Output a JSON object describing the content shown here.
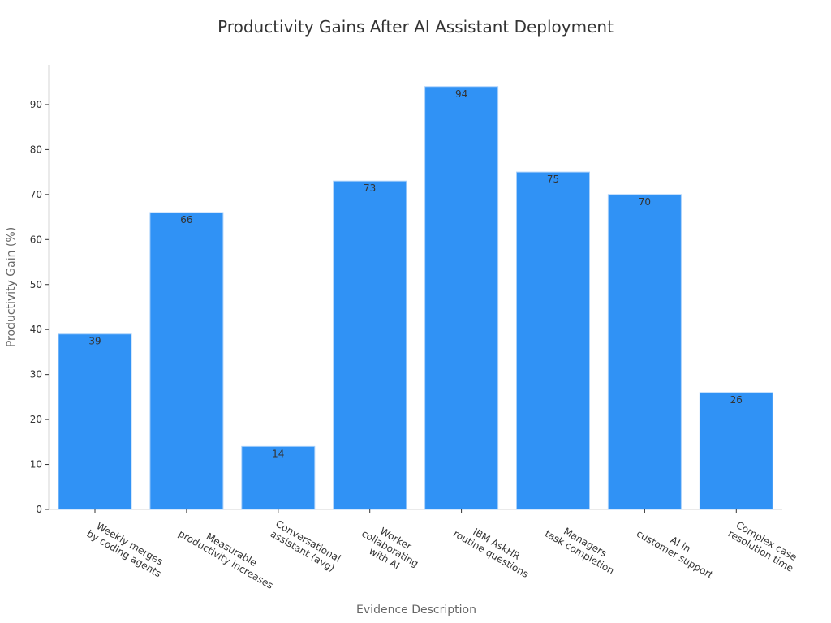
{
  "chart_data": {
    "type": "bar",
    "title": "Productivity Gains After AI Assistant Deployment",
    "xlabel": "Evidence Description",
    "ylabel": "Productivity Gain (%)",
    "categories": [
      [
        "Weekly merges",
        "by coding agents"
      ],
      [
        "Measurable",
        "productivity increases"
      ],
      [
        "Conversational",
        "assistant (avg)"
      ],
      [
        "Worker",
        "collaborating",
        "with AI"
      ],
      [
        "IBM AskHR",
        "routine questions"
      ],
      [
        "Managers",
        "task completion"
      ],
      [
        "AI in",
        "customer support"
      ],
      [
        "Complex case",
        "resolution time"
      ]
    ],
    "values": [
      39,
      66,
      14,
      73,
      94,
      75,
      70,
      26
    ],
    "yticks": [
      0,
      10,
      20,
      30,
      40,
      50,
      60,
      70,
      80,
      90
    ],
    "ylim": [
      0,
      99
    ],
    "grid": false,
    "legend": null,
    "bar_color": "#3092f5",
    "bar_edge_color": "#a8d0fa"
  }
}
